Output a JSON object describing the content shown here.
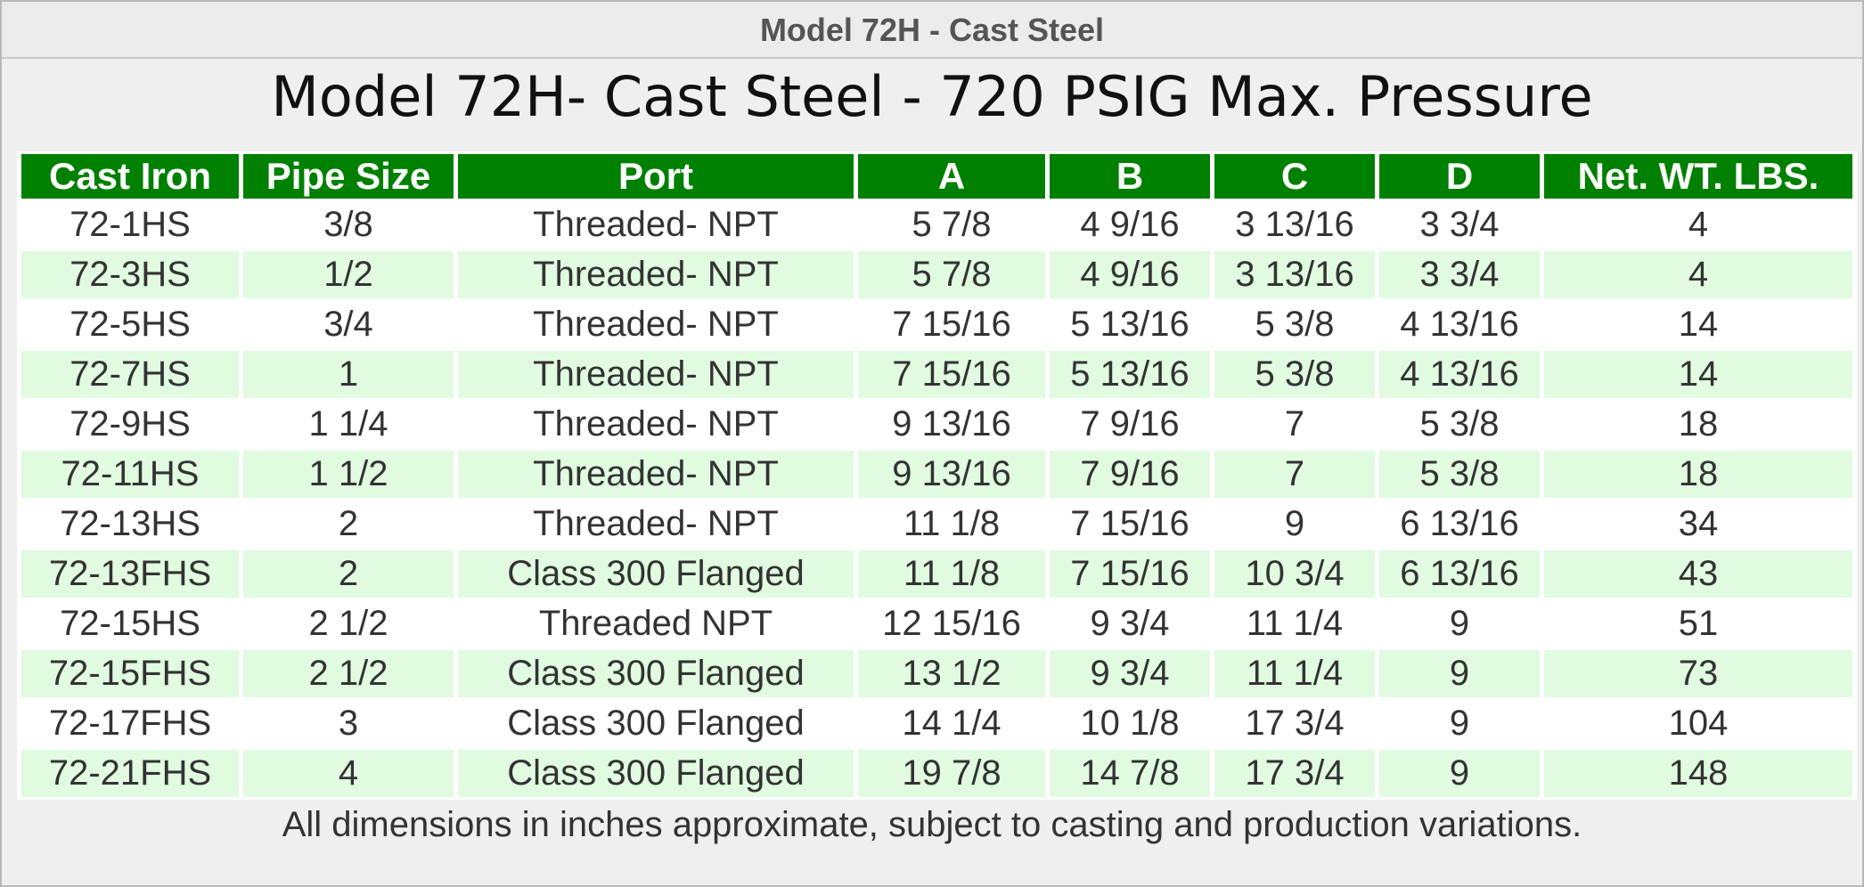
{
  "header": {
    "title": "Model 72H - Cast Steel"
  },
  "title": "Model 72H- Cast Steel - 720 PSIG Max. Pressure",
  "table": {
    "columns": [
      "Cast Iron",
      "Pipe Size",
      "Port",
      "A",
      "B",
      "C",
      "D",
      "Net. WT. LBS."
    ],
    "rows": [
      [
        "72-1HS",
        "3/8",
        "Threaded- NPT",
        "5 7/8",
        "4 9/16",
        "3 13/16",
        "3 3/4",
        "4"
      ],
      [
        "72-3HS",
        "1/2",
        "Threaded- NPT",
        "5 7/8",
        "4 9/16",
        "3 13/16",
        "3 3/4",
        "4"
      ],
      [
        "72-5HS",
        "3/4",
        "Threaded- NPT",
        "7 15/16",
        "5 13/16",
        "5 3/8",
        "4 13/16",
        "14"
      ],
      [
        "72-7HS",
        "1",
        "Threaded- NPT",
        "7 15/16",
        "5 13/16",
        "5 3/8",
        "4 13/16",
        "14"
      ],
      [
        "72-9HS",
        "1 1/4",
        "Threaded- NPT",
        "9 13/16",
        "7 9/16",
        "7",
        "5 3/8",
        "18"
      ],
      [
        "72-11HS",
        "1 1/2",
        "Threaded- NPT",
        "9 13/16",
        "7 9/16",
        "7",
        "5 3/8",
        "18"
      ],
      [
        "72-13HS",
        "2",
        "Threaded- NPT",
        "11 1/8",
        "7 15/16",
        "9",
        "6 13/16",
        "34"
      ],
      [
        "72-13FHS",
        "2",
        "Class 300 Flanged",
        "11 1/8",
        "7 15/16",
        "10 3/4",
        "6 13/16",
        "43"
      ],
      [
        "72-15HS",
        "2 1/2",
        "Threaded NPT",
        "12 15/16",
        "9 3/4",
        "11 1/4",
        "9",
        "51"
      ],
      [
        "72-15FHS",
        "2 1/2",
        "Class 300 Flanged",
        "13 1/2",
        "9 3/4",
        "11 1/4",
        "9",
        "73"
      ],
      [
        "72-17FHS",
        "3",
        "Class 300 Flanged",
        "14 1/4",
        "10 1/8",
        "17 3/4",
        "9",
        "104"
      ],
      [
        "72-21FHS",
        "4",
        "Class 300 Flanged",
        "19 7/8",
        "14 7/8",
        "17 3/4",
        "9",
        "148"
      ]
    ]
  },
  "footer": "All dimensions in inches approximate, subject to casting and production variations."
}
